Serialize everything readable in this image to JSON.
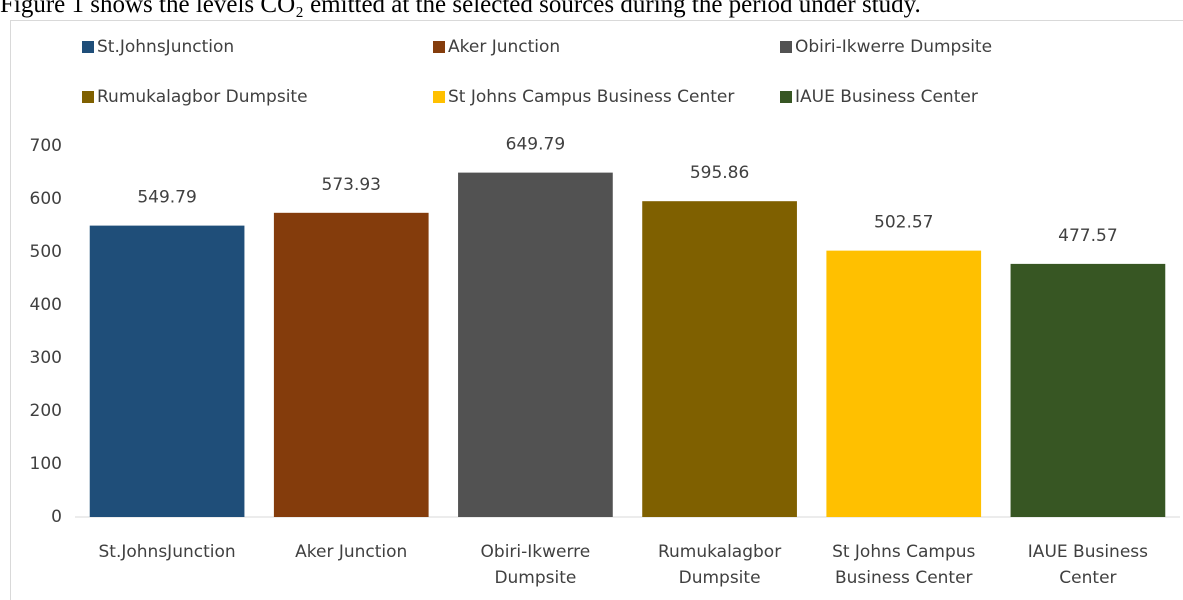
{
  "caption": "Figure 1 shows the levels CO₂ emitted at the selected sources during the period under study.",
  "chart_data": {
    "type": "bar",
    "categories": [
      "St.JohnsJunction",
      "Aker Junction",
      "Obiri-Ikwerre Dumpsite",
      "Rumukalagbor Dumpsite",
      "St Johns Campus Business Center",
      "IAUE Business Center"
    ],
    "values": [
      549.79,
      573.93,
      649.79,
      595.86,
      502.57,
      477.57
    ],
    "colors": [
      "#1f4e79",
      "#843c0c",
      "#525252",
      "#7f6000",
      "#ffc000",
      "#375623"
    ],
    "ylim": [
      0,
      700
    ],
    "yticks": [
      0,
      100,
      200,
      300,
      400,
      500,
      600,
      700
    ],
    "grid": false,
    "legend": "top"
  }
}
